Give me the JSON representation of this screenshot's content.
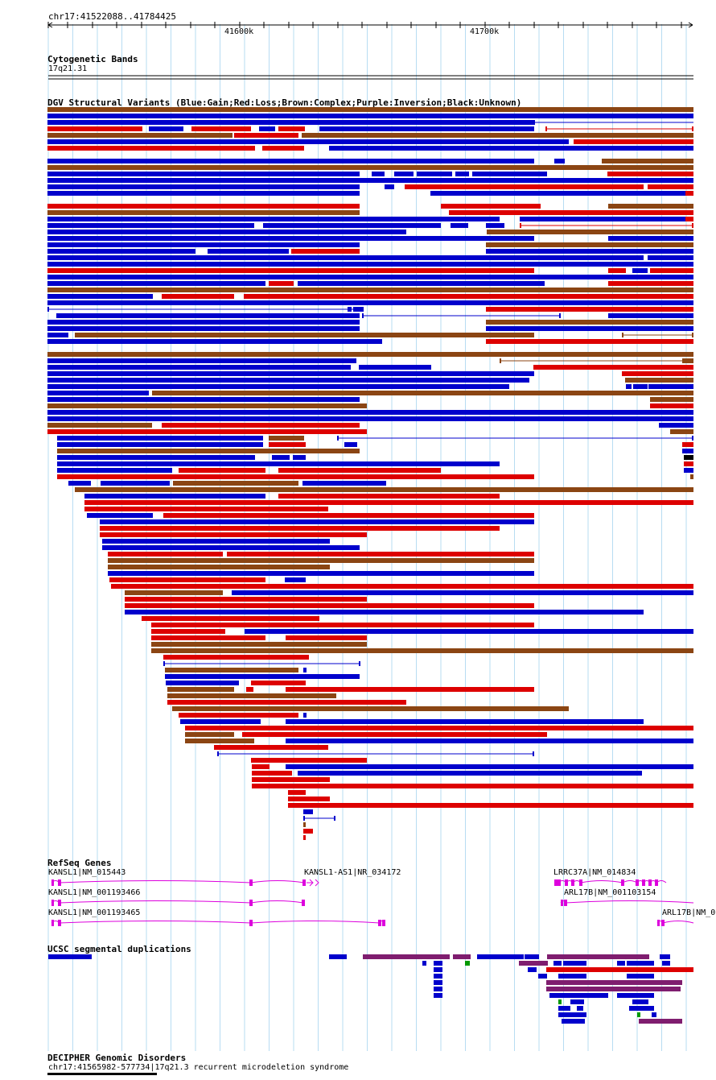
{
  "header": {
    "region": "chr17:41522088..41784425",
    "tick_600": "41600k",
    "tick_700": "41700k"
  },
  "cytoband": {
    "title": "Cytogenetic Bands",
    "band": "17q21.31"
  },
  "dgv": {
    "title": "DGV Structural Variants (Blue:Gain;Red:Loss;Brown:Complex;Purple:Inversion;Black:Unknown)",
    "colors": {
      "gain": "#0000cc",
      "loss": "#dd0000",
      "complex": "#8b4513",
      "inversion": "#7f1d6f",
      "unknown": "#000000"
    }
  },
  "refseq": {
    "title": "RefSeq Genes",
    "genes": [
      {
        "label": "KANSL1|NM_015443"
      },
      {
        "label": "KANSL1-AS1|NR_034172"
      },
      {
        "label": "LRRC37A|NM_014834"
      },
      {
        "label": "KANSL1|NM_001193466"
      },
      {
        "label": "ARL17B|NM_001103154"
      },
      {
        "label": "KANSL1|NM_001193465"
      },
      {
        "label": "ARL17B|NM_0"
      }
    ],
    "color": "#dd00dd"
  },
  "segdups": {
    "title": "UCSC segmental duplications"
  },
  "decipher": {
    "title": "DECIPHER Genomic Disorders",
    "entry": "chr17:41565982-577734|17q21.3 recurrent microdeletion syndrome"
  }
}
